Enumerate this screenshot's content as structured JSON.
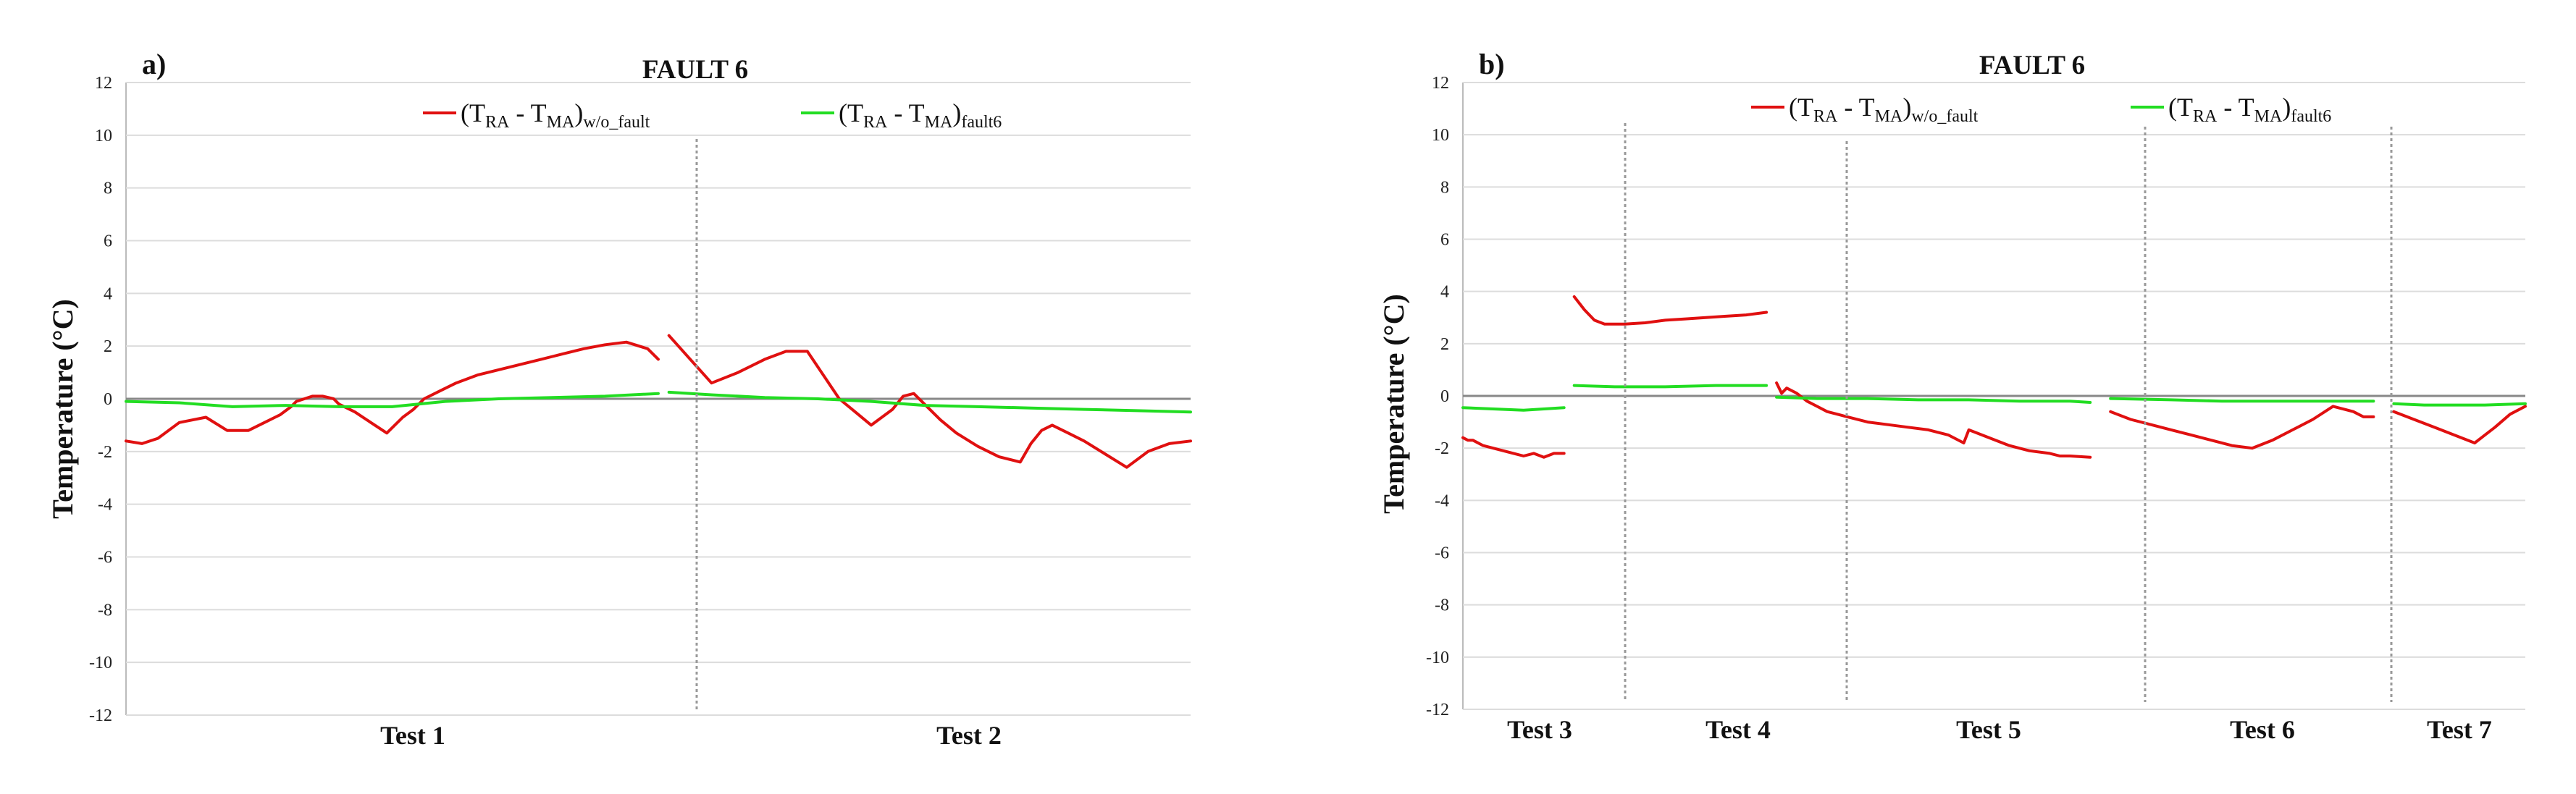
{
  "chart_data": [
    {
      "type": "line",
      "panel_label": "a)",
      "title": "FAULT 6",
      "ylabel": "Temperature (°C)",
      "ylim": [
        -12,
        12
      ],
      "yticks": [
        12,
        10,
        8,
        6,
        4,
        2,
        0,
        -2,
        -4,
        -6,
        -8,
        -10,
        -12
      ],
      "categories": [
        "Test 1",
        "Test 2"
      ],
      "legend": [
        {
          "main": "(T",
          "s1": "RA",
          "mid": " - T",
          "s2": "MA",
          "close": ")",
          "s3": "w/o_fault",
          "color": "#e01010"
        },
        {
          "main": "(T",
          "s1": "RA",
          "mid": " - T",
          "s2": "MA",
          "close": ")",
          "s3": "fault6",
          "color": "#22dd22"
        }
      ],
      "segments": [
        {
          "name": "(TRA - TMA)w/o_fault",
          "color": "#e01010",
          "pieces": [
            {
              "x": [
                0,
                0.03,
                0.06,
                0.1,
                0.15,
                0.19,
                0.23,
                0.26,
                0.29,
                0.31,
                0.32,
                0.35,
                0.37,
                0.39,
                0.4,
                0.43,
                0.46,
                0.49,
                0.52,
                0.54,
                0.56,
                0.59,
                0.62,
                0.66,
                0.7,
                0.74,
                0.78,
                0.82,
                0.86,
                0.9,
                0.94,
                0.98,
                1.0
              ],
              "y": [
                -1.6,
                -1.7,
                -1.5,
                -0.9,
                -0.7,
                -1.2,
                -1.2,
                -0.9,
                -0.6,
                -0.3,
                -0.1,
                0.1,
                0.1,
                0.0,
                -0.2,
                -0.5,
                -0.9,
                -1.3,
                -0.7,
                -0.4,
                0.0,
                0.3,
                0.6,
                0.9,
                1.1,
                1.3,
                1.5,
                1.7,
                1.9,
                2.05,
                2.15,
                1.9,
                1.5
              ]
            },
            {
              "x": [
                1.02,
                1.06,
                1.1,
                1.15,
                1.2,
                1.24,
                1.28,
                1.3,
                1.34,
                1.37,
                1.4,
                1.44,
                1.46,
                1.48,
                1.5,
                1.53,
                1.56,
                1.6,
                1.64,
                1.68,
                1.7,
                1.72,
                1.74,
                1.77,
                1.8,
                1.84,
                1.88,
                1.92,
                1.96,
                2.0
              ],
              "y": [
                2.4,
                1.5,
                0.6,
                1.0,
                1.5,
                1.8,
                1.8,
                1.2,
                0.0,
                -0.5,
                -1.0,
                -0.4,
                0.1,
                0.2,
                -0.2,
                -0.8,
                -1.3,
                -1.8,
                -2.2,
                -2.4,
                -1.7,
                -1.2,
                -1.0,
                -1.3,
                -1.6,
                -2.1,
                -2.6,
                -2.0,
                -1.7,
                -1.6
              ]
            }
          ]
        },
        {
          "name": "(TRA - TMA)fault6",
          "color": "#22dd22",
          "pieces": [
            {
              "x": [
                0,
                0.1,
                0.2,
                0.3,
                0.4,
                0.5,
                0.6,
                0.7,
                0.8,
                0.9,
                1.0
              ],
              "y": [
                -0.1,
                -0.15,
                -0.3,
                -0.25,
                -0.3,
                -0.3,
                -0.1,
                0.0,
                0.05,
                0.1,
                0.2
              ]
            },
            {
              "x": [
                1.02,
                1.1,
                1.2,
                1.3,
                1.4,
                1.5,
                1.6,
                1.7,
                1.8,
                1.9,
                2.0
              ],
              "y": [
                0.25,
                0.15,
                0.05,
                0.0,
                -0.1,
                -0.25,
                -0.3,
                -0.35,
                -0.4,
                -0.45,
                -0.5
              ]
            }
          ]
        }
      ]
    },
    {
      "type": "line",
      "panel_label": "b)",
      "title": "FAULT 6",
      "ylabel": "Temperature (°C)",
      "ylim": [
        -12,
        12
      ],
      "yticks": [
        12,
        10,
        8,
        6,
        4,
        2,
        0,
        -2,
        -4,
        -6,
        -8,
        -10,
        -12
      ],
      "categories": [
        "Test 3",
        "Test 4",
        "Test 5",
        "Test 6",
        "Test 7"
      ],
      "legend": [
        {
          "main": "(T",
          "s1": "RA",
          "mid": " - T",
          "s2": "MA",
          "close": ")",
          "s3": "w/o_fault",
          "color": "#e01010"
        },
        {
          "main": "(T",
          "s1": "RA",
          "mid": " - T",
          "s2": "MA",
          "close": ")",
          "s3": "fault6",
          "color": "#22dd22"
        }
      ],
      "segments": [
        {
          "name": "(TRA - TMA)w/o_fault",
          "color": "#e01010",
          "pieces": [
            {
              "x": [
                0,
                0.05,
                0.1,
                0.2,
                0.3,
                0.4,
                0.5,
                0.6,
                0.7,
                0.8,
                0.9,
                1.0
              ],
              "y": [
                -1.6,
                -1.7,
                -1.7,
                -1.9,
                -2.0,
                -2.1,
                -2.2,
                -2.3,
                -2.2,
                -2.35,
                -2.2,
                -2.2
              ]
            },
            {
              "x": [
                1.1,
                1.2,
                1.3,
                1.4,
                1.6,
                1.8,
                2.0,
                2.2,
                2.4,
                2.6,
                2.8,
                3.0
              ],
              "y": [
                3.8,
                3.3,
                2.9,
                2.75,
                2.75,
                2.8,
                2.9,
                2.95,
                3.0,
                3.05,
                3.1,
                3.2
              ]
            },
            {
              "x": [
                3.1,
                3.15,
                3.2,
                3.3,
                3.4,
                3.5,
                3.6,
                3.8,
                4.0,
                4.2,
                4.4,
                4.6,
                4.8,
                4.95,
                5.0,
                5.2,
                5.4,
                5.6,
                5.8,
                5.9,
                6.0,
                6.2
              ],
              "y": [
                0.5,
                0.1,
                0.3,
                0.1,
                -0.2,
                -0.4,
                -0.6,
                -0.8,
                -1.0,
                -1.1,
                -1.2,
                -1.3,
                -1.5,
                -1.8,
                -1.3,
                -1.6,
                -1.9,
                -2.1,
                -2.2,
                -2.3,
                -2.3,
                -2.35
              ]
            },
            {
              "x": [
                6.4,
                6.6,
                6.8,
                7.0,
                7.2,
                7.4,
                7.6,
                7.8,
                8.0,
                8.2,
                8.4,
                8.6,
                8.8,
                8.9,
                9.0
              ],
              "y": [
                -0.6,
                -0.9,
                -1.1,
                -1.3,
                -1.5,
                -1.7,
                -1.9,
                -2.0,
                -1.7,
                -1.3,
                -0.9,
                -0.4,
                -0.6,
                -0.8,
                -0.8
              ]
            },
            {
              "x": [
                9.2,
                9.4,
                9.6,
                9.8,
                10.0,
                10.2,
                10.35,
                10.5
              ],
              "y": [
                -0.6,
                -0.9,
                -1.2,
                -1.5,
                -1.8,
                -1.2,
                -0.7,
                -0.4
              ]
            }
          ]
        },
        {
          "name": "(TRA - TMA)fault6",
          "color": "#22dd22",
          "pieces": [
            {
              "x": [
                0,
                0.3,
                0.6,
                0.8,
                1.0
              ],
              "y": [
                -0.45,
                -0.5,
                -0.55,
                -0.5,
                -0.45
              ]
            },
            {
              "x": [
                1.1,
                1.5,
                2.0,
                2.5,
                3.0
              ],
              "y": [
                0.4,
                0.35,
                0.35,
                0.4,
                0.4
              ]
            },
            {
              "x": [
                3.1,
                3.5,
                4.0,
                4.5,
                5.0,
                5.5,
                6.0,
                6.2
              ],
              "y": [
                -0.05,
                -0.1,
                -0.1,
                -0.15,
                -0.15,
                -0.2,
                -0.2,
                -0.25
              ]
            },
            {
              "x": [
                6.4,
                7.0,
                7.5,
                8.0,
                8.5,
                9.0
              ],
              "y": [
                -0.1,
                -0.15,
                -0.2,
                -0.2,
                -0.2,
                -0.2
              ]
            },
            {
              "x": [
                9.2,
                9.5,
                9.8,
                10.1,
                10.5
              ],
              "y": [
                -0.3,
                -0.35,
                -0.35,
                -0.35,
                -0.3
              ]
            }
          ]
        }
      ]
    }
  ]
}
